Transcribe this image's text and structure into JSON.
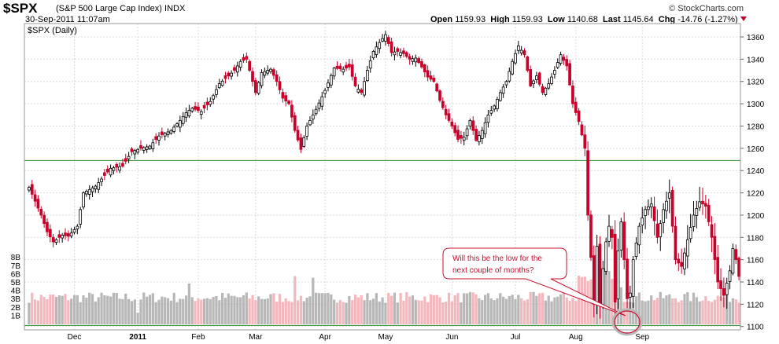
{
  "header": {
    "symbol": "$SPX",
    "name": "(S&P 500 Large Cap Index)",
    "exchange": "INDX",
    "datetime": "30-Sep-2011 11:07am",
    "brand": "© StockCharts.com",
    "open_label": "Open",
    "open": "1159.93",
    "high_label": "High",
    "high": "1159.93",
    "low_label": "Low",
    "low": "1140.68",
    "last_label": "Last",
    "last": "1145.64",
    "chg_label": "Chg",
    "chg": "-14.76 (-1.27%)"
  },
  "chart_data": {
    "type": "candlestick",
    "panel_label": "$SPX (Daily)",
    "ylim": [
      1097,
      1372
    ],
    "y_ticks": [
      1100,
      1120,
      1140,
      1160,
      1180,
      1200,
      1220,
      1240,
      1260,
      1280,
      1300,
      1320,
      1340,
      1360
    ],
    "volume_ticks": [
      "1B",
      "2B",
      "3B",
      "4B",
      "5B",
      "6B",
      "7B",
      "8B"
    ],
    "volume_ylim": [
      0,
      8
    ],
    "x_labels": [
      {
        "label": "Dec",
        "index": 15
      },
      {
        "label": "2011",
        "index": 36
      },
      {
        "label": "Feb",
        "index": 56
      },
      {
        "label": "Mar",
        "index": 75
      },
      {
        "label": "Apr",
        "index": 98
      },
      {
        "label": "May",
        "index": 118
      },
      {
        "label": "Jun",
        "index": 140
      },
      {
        "label": "Jul",
        "index": 161
      },
      {
        "label": "Aug",
        "index": 181
      },
      {
        "label": "Sep",
        "index": 203
      }
    ],
    "horizontal_lines": [
      {
        "value": 1249,
        "color": "#2a8a2a"
      },
      {
        "value": 1101,
        "color": "#2a8a2a"
      }
    ],
    "anchors": [
      [
        0,
        1225
      ],
      [
        4,
        1200
      ],
      [
        6,
        1185
      ],
      [
        8,
        1176
      ],
      [
        11,
        1182
      ],
      [
        13,
        1181
      ],
      [
        16,
        1190
      ],
      [
        18,
        1220
      ],
      [
        22,
        1226
      ],
      [
        27,
        1242
      ],
      [
        31,
        1244
      ],
      [
        34,
        1257
      ],
      [
        37,
        1260
      ],
      [
        40,
        1262
      ],
      [
        43,
        1271
      ],
      [
        47,
        1276
      ],
      [
        50,
        1285
      ],
      [
        52,
        1292
      ],
      [
        54,
        1296
      ],
      [
        57,
        1293
      ],
      [
        60,
        1302
      ],
      [
        63,
        1318
      ],
      [
        66,
        1325
      ],
      [
        68,
        1330
      ],
      [
        70,
        1338
      ],
      [
        72,
        1340
      ],
      [
        75,
        1310
      ],
      [
        77,
        1328
      ],
      [
        80,
        1331
      ],
      [
        82,
        1320
      ],
      [
        84,
        1305
      ],
      [
        86,
        1300
      ],
      [
        88,
        1276
      ],
      [
        90,
        1259
      ],
      [
        92,
        1280
      ],
      [
        95,
        1295
      ],
      [
        98,
        1312
      ],
      [
        101,
        1332
      ],
      [
        104,
        1331
      ],
      [
        106,
        1333
      ],
      [
        108,
        1316
      ],
      [
        110,
        1310
      ],
      [
        112,
        1330
      ],
      [
        114,
        1347
      ],
      [
        116,
        1355
      ],
      [
        118,
        1362
      ],
      [
        120,
        1346
      ],
      [
        122,
        1347
      ],
      [
        124,
        1345
      ],
      [
        126,
        1340
      ],
      [
        128,
        1341
      ],
      [
        130,
        1333
      ],
      [
        132,
        1324
      ],
      [
        134,
        1320
      ],
      [
        136,
        1303
      ],
      [
        138,
        1290
      ],
      [
        140,
        1280
      ],
      [
        142,
        1268
      ],
      [
        144,
        1270
      ],
      [
        146,
        1285
      ],
      [
        148,
        1267
      ],
      [
        150,
        1276
      ],
      [
        152,
        1290
      ],
      [
        154,
        1298
      ],
      [
        156,
        1310
      ],
      [
        158,
        1320
      ],
      [
        160,
        1338
      ],
      [
        162,
        1352
      ],
      [
        164,
        1344
      ],
      [
        166,
        1316
      ],
      [
        168,
        1325
      ],
      [
        170,
        1310
      ],
      [
        172,
        1318
      ],
      [
        174,
        1330
      ],
      [
        176,
        1344
      ],
      [
        178,
        1334
      ],
      [
        180,
        1300
      ],
      [
        182,
        1284
      ],
      [
        184,
        1260
      ],
      [
        185,
        1200
      ],
      [
        186,
        1162
      ],
      [
        187,
        1120
      ],
      [
        188,
        1172
      ],
      [
        189,
        1120
      ],
      [
        190,
        1152
      ],
      [
        191,
        1176
      ],
      [
        192,
        1190
      ],
      [
        193,
        1180
      ],
      [
        194,
        1122
      ],
      [
        195,
        1168
      ],
      [
        196,
        1194
      ],
      [
        197,
        1160
      ],
      [
        198,
        1125
      ],
      [
        199,
        1130
      ],
      [
        200,
        1160
      ],
      [
        202,
        1190
      ],
      [
        204,
        1205
      ],
      [
        206,
        1210
      ],
      [
        208,
        1180
      ],
      [
        210,
        1205
      ],
      [
        212,
        1220
      ],
      [
        214,
        1160
      ],
      [
        216,
        1154
      ],
      [
        218,
        1178
      ],
      [
        220,
        1200
      ],
      [
        222,
        1212
      ],
      [
        224,
        1208
      ],
      [
        226,
        1180
      ],
      [
        228,
        1140
      ],
      [
        230,
        1128
      ],
      [
        232,
        1150
      ],
      [
        233,
        1170
      ],
      [
        234,
        1160
      ],
      [
        235,
        1145
      ]
    ],
    "annotation": {
      "text_line1": "Will this be the low for the",
      "text_line2": "next couple of months?"
    }
  }
}
